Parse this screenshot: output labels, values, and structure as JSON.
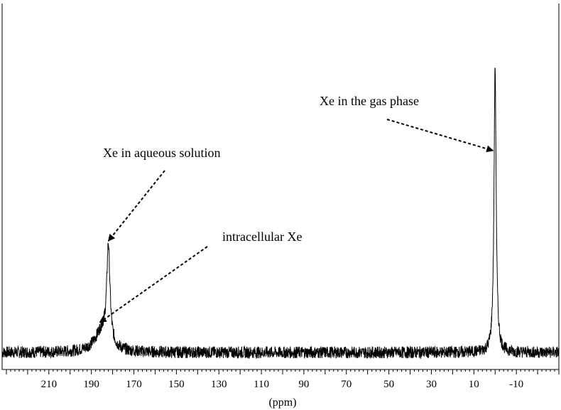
{
  "chart_data": {
    "type": "line",
    "title": "",
    "xlabel": "(ppm)",
    "ylabel": "",
    "x_reversed": true,
    "xlim": [
      232,
      -30
    ],
    "ylim": [
      0,
      1
    ],
    "grid": false,
    "ticks": [
      210,
      190,
      170,
      150,
      130,
      110,
      90,
      70,
      50,
      30,
      10,
      -10
    ],
    "tick_labels": [
      "210",
      "190",
      "170",
      "150",
      "130",
      "110",
      "90",
      "70",
      "50",
      "30",
      "10",
      "-10"
    ],
    "series": [
      {
        "peaks": [
          {
            "ppm": 0,
            "height": 0.95,
            "width": 0.6
          },
          {
            "ppm": 182,
            "height": 0.32,
            "width": 0.9
          },
          {
            "ppm": 185,
            "height": 0.07,
            "width": 4
          }
        ],
        "baseline": 0.0,
        "noise_amplitude": 0.02
      }
    ],
    "annotations": [
      {
        "text": "Xe in the gas phase",
        "target_ppm": 1,
        "target_y": 0.67
      },
      {
        "text": "Xe in aqueous solution",
        "target_ppm": 182,
        "target_y": 0.37
      },
      {
        "text": "intracellular Xe",
        "target_ppm": 186,
        "target_y": 0.1
      }
    ]
  }
}
